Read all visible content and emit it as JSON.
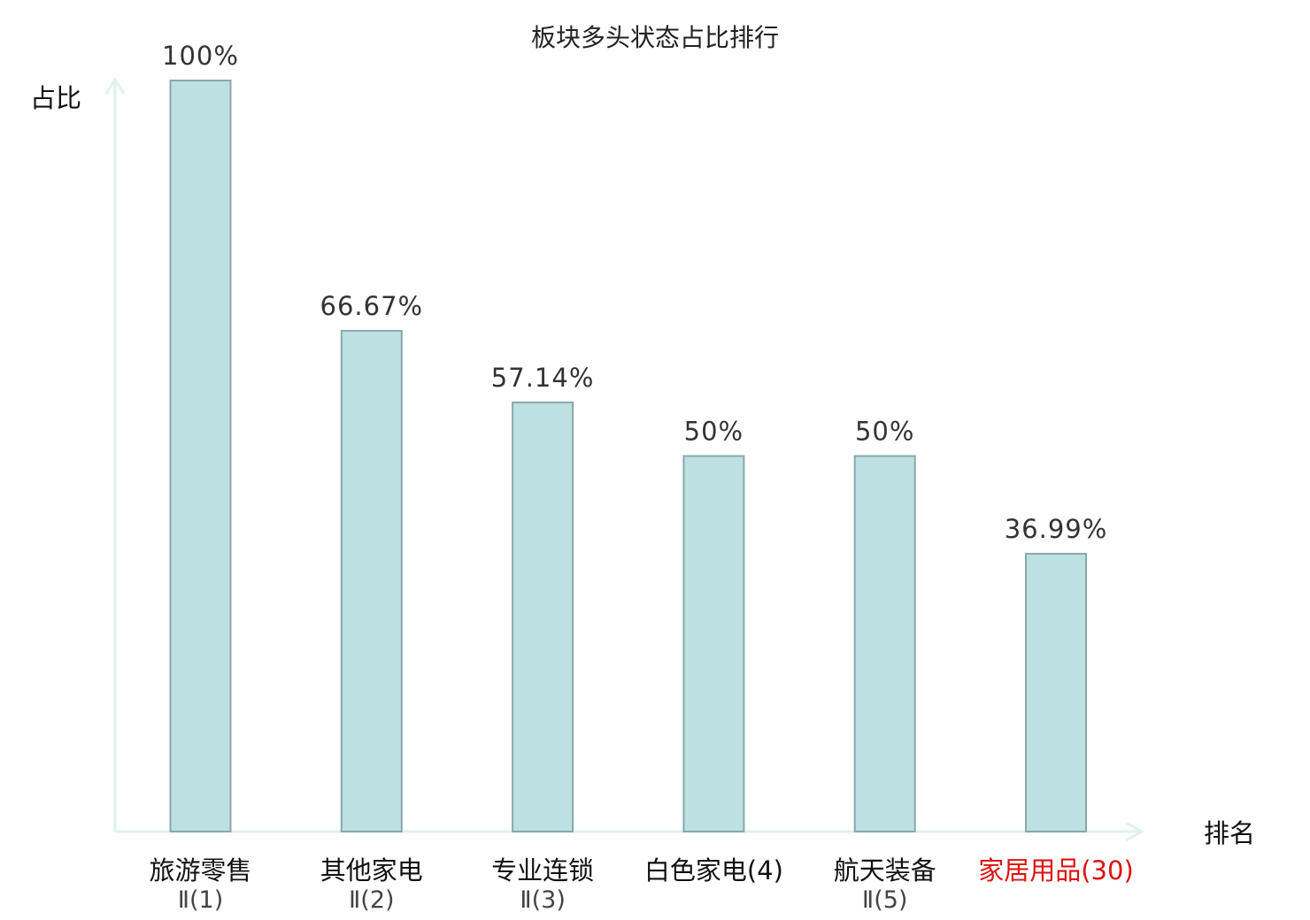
{
  "chart_data": {
    "type": "bar",
    "title": "板块多头状态占比排行",
    "ylabel": "占比",
    "xlabel": "排名",
    "ylim": [
      0,
      100
    ],
    "grid": false,
    "categories": [
      {
        "name": "旅游零售",
        "rank": "Ⅱ(1)",
        "highlight": false
      },
      {
        "name": "其他家电",
        "rank": "Ⅱ(2)",
        "highlight": false
      },
      {
        "name": "专业连锁",
        "rank": "Ⅱ(3)",
        "highlight": false
      },
      {
        "name": "白色家电(4)",
        "rank": "",
        "highlight": false
      },
      {
        "name": "航天装备",
        "rank": "Ⅱ(5)",
        "highlight": false
      },
      {
        "name": "家居用品(30)",
        "rank": "",
        "highlight": true
      }
    ],
    "values": [
      100,
      66.67,
      57.14,
      50,
      50,
      36.99
    ],
    "value_labels": [
      "100%",
      "66.67%",
      "57.14%",
      "50%",
      "50%",
      "36.99%"
    ],
    "colors": {
      "bar_fill": "#bde0e3",
      "bar_stroke": "#88a8ab",
      "axis": "#dff2ef",
      "highlight_text": "#dd1111"
    }
  }
}
